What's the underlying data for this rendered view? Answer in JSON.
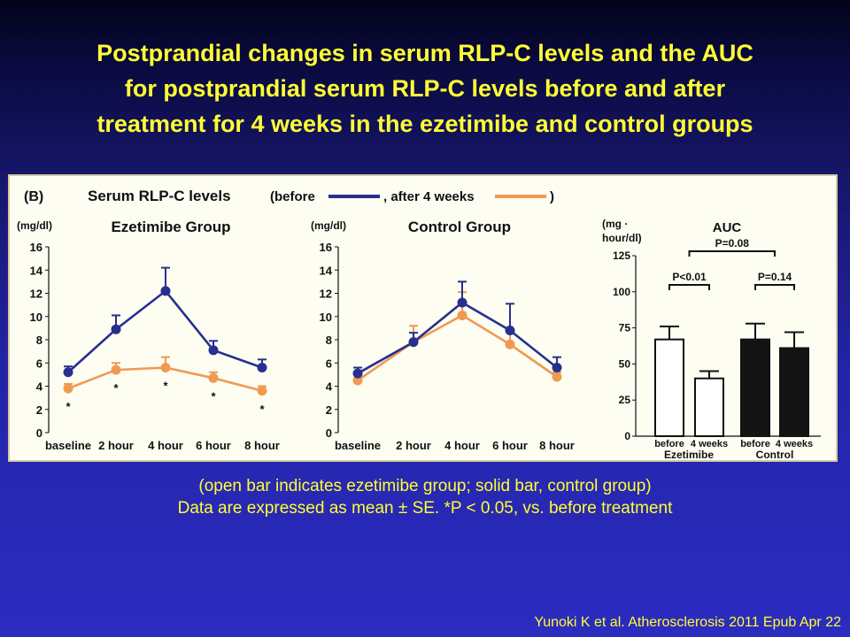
{
  "slide": {
    "title_lines": [
      "Postprandial changes in serum RLP-C  levels and the AUC",
      "for postprandial serum RLP-C levels before and after",
      "treatment for 4 weeks in the ezetimibe and control groups"
    ],
    "caption_lines": [
      "(open bar indicates ezetimibe group; solid bar, control group)",
      "Data are expressed as mean ± SE. *P < 0.05, vs. before treatment"
    ],
    "citation": "Yunoki K et al. Atherosclerosis 2011 Epub Apr 22"
  },
  "figure": {
    "panel_label": "(B)",
    "header_title": "Serum RLP-C levels",
    "legend_open": "(before",
    "legend_mid": ", after 4 weeks",
    "legend_close": ")",
    "colors": {
      "before": "#27308f",
      "after": "#ef9a52",
      "solid_bar": "#141414",
      "open_bar": "#ffffff"
    }
  },
  "chart_data": [
    {
      "type": "line",
      "title": "Ezetimibe Group",
      "ylabel": "(mg/dl)",
      "categories": [
        "baseline",
        "2 hour",
        "4 hour",
        "6 hour",
        "8 hour"
      ],
      "ylim": [
        0,
        16
      ],
      "yticks": [
        "0",
        "2",
        "4",
        "6",
        "8",
        "10",
        "12",
        "14",
        "16"
      ],
      "series": [
        {
          "name": "before",
          "color": "#27308f",
          "values": [
            5.2,
            8.9,
            12.2,
            7.1,
            5.6
          ],
          "error": [
            0.5,
            1.2,
            2.0,
            0.8,
            0.7
          ]
        },
        {
          "name": "after 4 weeks",
          "color": "#ef9a52",
          "values": [
            3.8,
            5.4,
            5.6,
            4.7,
            3.6
          ],
          "error": [
            0.4,
            0.6,
            0.9,
            0.5,
            0.4
          ]
        }
      ],
      "significance": [
        "*",
        "*",
        "*",
        "*",
        "*"
      ]
    },
    {
      "type": "line",
      "title": "Control Group",
      "ylabel": "(mg/dl)",
      "categories": [
        "baseline",
        "2 hour",
        "4 hour",
        "6 hour",
        "8 hour"
      ],
      "ylim": [
        0,
        16
      ],
      "yticks": [
        "0",
        "2",
        "4",
        "6",
        "8",
        "10",
        "12",
        "14",
        "16"
      ],
      "series": [
        {
          "name": "before",
          "color": "#27308f",
          "values": [
            5.1,
            7.8,
            11.2,
            8.8,
            5.6
          ],
          "error": [
            0.5,
            0.8,
            1.8,
            2.3,
            0.9
          ]
        },
        {
          "name": "after 4 weeks",
          "color": "#ef9a52",
          "values": [
            4.5,
            7.8,
            10.1,
            7.6,
            4.8
          ],
          "error": [
            0.5,
            1.4,
            2.0,
            1.2,
            0.4
          ]
        }
      ],
      "significance": [
        "",
        "",
        "",
        "",
        ""
      ]
    },
    {
      "type": "bar",
      "title": "AUC",
      "ylabel_lines": [
        "(mg ·",
        "hour/dl)"
      ],
      "ylim": [
        0,
        125
      ],
      "yticks": [
        "0",
        "25",
        "50",
        "75",
        "100",
        "125"
      ],
      "categories": [
        "before",
        "4 weeks",
        "before",
        "4 weeks"
      ],
      "groups": [
        "Ezetimibe",
        "Control"
      ],
      "values": [
        67,
        40,
        67,
        61
      ],
      "error": [
        9,
        5,
        11,
        11
      ],
      "fill": [
        "open",
        "open",
        "solid",
        "solid"
      ],
      "annotations": [
        {
          "label": "P<0.01",
          "from": 0,
          "to": 1
        },
        {
          "label": "P=0.14",
          "from": 2,
          "to": 3
        },
        {
          "label": "P=0.08",
          "from": 0.5,
          "to": 2.5
        }
      ]
    }
  ]
}
